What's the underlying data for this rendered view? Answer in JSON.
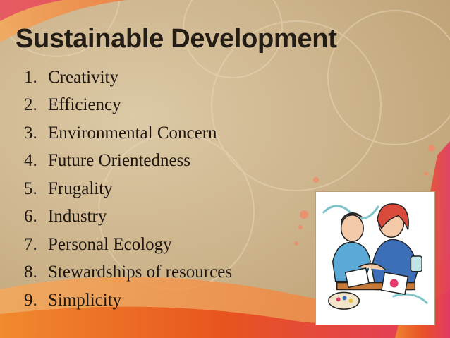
{
  "slide": {
    "title": "Sustainable Development",
    "items": [
      {
        "number": "1.",
        "text": "Creativity"
      },
      {
        "number": "2.",
        "text": "Efficiency"
      },
      {
        "number": "3.",
        "text": "Environmental Concern"
      },
      {
        "number": "4.",
        "text": "Future Orientedness"
      },
      {
        "number": "5.",
        "text": "Frugality"
      },
      {
        "number": "6.",
        "text": "Industry"
      },
      {
        "number": "7.",
        "text": "Personal Ecology"
      },
      {
        "number": "8.",
        "text": "Stewardships of resources"
      },
      {
        "number": "9.",
        "text": "Simplicity"
      }
    ],
    "colors": {
      "background": "#cdb58d",
      "text": "#1f170f",
      "accent_orange": "#e8641f",
      "accent_pink": "#e43a6a"
    },
    "image": "people-working-clipart"
  }
}
